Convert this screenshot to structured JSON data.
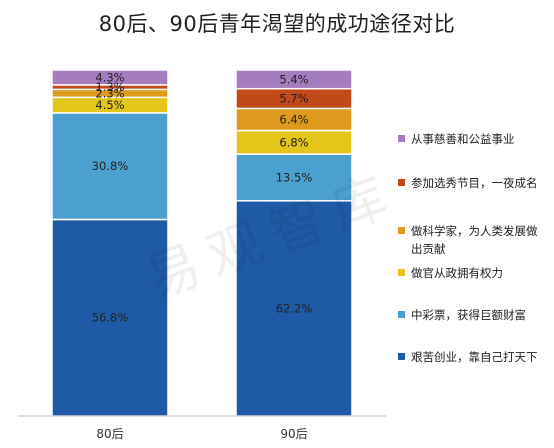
{
  "chart_data": {
    "type": "bar",
    "stacked": true,
    "title": "80后、90后青年渴望的成功途径对比",
    "categories": [
      "80后",
      "90后"
    ],
    "ylim": [
      0,
      100
    ],
    "grid": false,
    "legend_position": "right",
    "series": [
      {
        "name": "艰苦创业，靠自己打天下",
        "color": "#1f5aa6",
        "values": [
          56.8,
          62.2
        ],
        "labels": [
          "56.8%",
          "62.2%"
        ]
      },
      {
        "name": "中彩票，获得巨额财富",
        "color": "#4ba0d0",
        "values": [
          30.8,
          13.5
        ],
        "labels": [
          "30.8%",
          "13.5%"
        ]
      },
      {
        "name": "做官从政拥有权力",
        "color": "#e3c619",
        "values": [
          4.5,
          6.8
        ],
        "labels": [
          "4.5%",
          "6.8%"
        ]
      },
      {
        "name": "做科学家，为人类发展做出贡献",
        "color": "#dd9a1c",
        "values": [
          2.3,
          6.4
        ],
        "labels": [
          "2.3%",
          "6.4%"
        ]
      },
      {
        "name": "参加选秀节目，一夜成名",
        "color": "#c2491a",
        "values": [
          1.3,
          5.7
        ],
        "labels": [
          "1.3%",
          "5.7%"
        ]
      },
      {
        "name": "从事慈善和公益事业",
        "color": "#a57cbd",
        "values": [
          4.3,
          5.4
        ],
        "labels": [
          "4.3%",
          "5.4%"
        ]
      }
    ]
  },
  "watermark": "易观智库",
  "legend_order": [
    5,
    4,
    3,
    2,
    1,
    0
  ]
}
